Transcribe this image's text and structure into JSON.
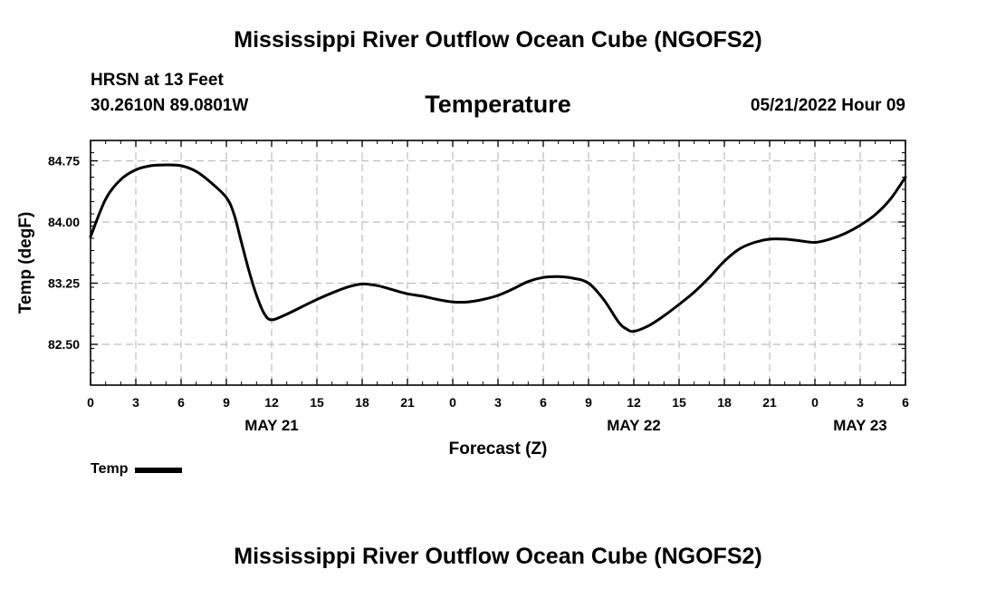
{
  "header": {
    "title": "Mississippi River Outflow Ocean Cube (NGOFS2)",
    "station": "HRSN at 13 Feet",
    "coordinates": "30.2610N  89.0801W",
    "panel_title": "Temperature",
    "datetime": "05/21/2022 Hour 09"
  },
  "footer": {
    "title": "Mississippi River Outflow Ocean Cube (NGOFS2)"
  },
  "legend": {
    "label": "Temp"
  },
  "chart_data": {
    "type": "line",
    "title": "Temperature",
    "xlabel": "Forecast (Z)",
    "ylabel": "Temp (degF)",
    "xlim": [
      0,
      54
    ],
    "ylim": [
      82.0,
      85.0
    ],
    "yticks": [
      82.5,
      83.25,
      84.0,
      84.75
    ],
    "ytick_labels": [
      "82.50",
      "83.25",
      "84.00",
      "84.75"
    ],
    "xticks": [
      0,
      3,
      6,
      9,
      12,
      15,
      18,
      21,
      24,
      27,
      30,
      33,
      36,
      39,
      42,
      45,
      48,
      51,
      54
    ],
    "xtick_labels": [
      "0",
      "3",
      "6",
      "9",
      "12",
      "15",
      "18",
      "21",
      "0",
      "3",
      "6",
      "9",
      "12",
      "15",
      "18",
      "21",
      "0",
      "3",
      "6"
    ],
    "date_labels": [
      {
        "x": 12,
        "label": "MAY 21"
      },
      {
        "x": 36,
        "label": "MAY 22"
      },
      {
        "x": 51,
        "label": "MAY 23"
      }
    ],
    "grid": true,
    "series": [
      {
        "name": "Temp",
        "color": "#000000",
        "x": [
          0,
          1,
          2,
          3,
          4,
          5,
          6,
          7,
          8,
          9,
          9.5,
          10,
          10.5,
          11,
          11.5,
          12,
          13,
          14,
          15,
          16,
          17,
          18,
          19,
          20,
          21,
          22,
          23,
          24,
          25,
          26,
          27,
          28,
          29,
          30,
          31,
          32,
          33,
          34,
          35,
          35.5,
          36,
          37,
          38,
          39,
          40,
          41,
          42,
          43,
          44,
          45,
          46,
          47,
          48,
          49,
          50,
          51,
          52,
          53,
          54
        ],
        "y": [
          83.82,
          84.28,
          84.52,
          84.64,
          84.69,
          84.7,
          84.69,
          84.62,
          84.48,
          84.3,
          84.1,
          83.75,
          83.4,
          83.1,
          82.88,
          82.8,
          82.87,
          82.96,
          83.05,
          83.13,
          83.2,
          83.24,
          83.22,
          83.17,
          83.12,
          83.09,
          83.05,
          83.02,
          83.02,
          83.05,
          83.1,
          83.18,
          83.27,
          83.32,
          83.33,
          83.31,
          83.25,
          83.05,
          82.77,
          82.69,
          82.66,
          82.73,
          82.85,
          82.99,
          83.14,
          83.32,
          83.52,
          83.67,
          83.75,
          83.79,
          83.79,
          83.77,
          83.75,
          83.79,
          83.86,
          83.96,
          84.09,
          84.28,
          84.55
        ]
      }
    ]
  }
}
